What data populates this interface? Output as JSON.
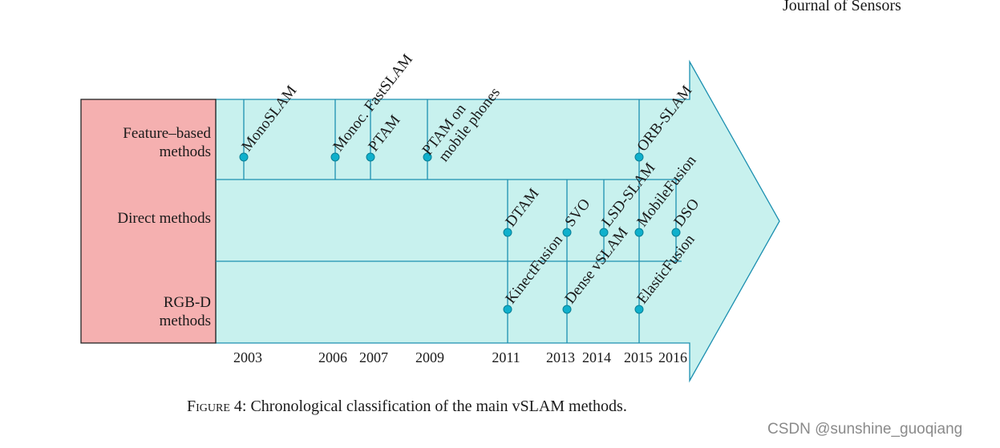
{
  "header": {
    "journal": "Journal of Sensors"
  },
  "figure": {
    "caption_prefix": "Figure 4:",
    "caption_text": " Chronological classification of the main vSLAM methods.",
    "colors": {
      "arrow_fill": "#c8f1ee",
      "arrow_stroke": "#1b8fb0",
      "category_fill": "#f5b0b0",
      "dot_fill": "#0fb0cc"
    },
    "categories": [
      {
        "lines": [
          "Feature–based",
          "methods"
        ]
      },
      {
        "lines": [
          "Direct methods"
        ]
      },
      {
        "lines": [
          "RGB-D",
          "methods"
        ]
      }
    ],
    "years": [
      "2003",
      "2006",
      "2007",
      "2009",
      "2011",
      "2013",
      "2014",
      "2015",
      "2016"
    ],
    "methods": [
      {
        "lines": [
          "MonoSLAM"
        ],
        "year": "2003",
        "category": "Feature–based methods"
      },
      {
        "lines": [
          "Monoc. FastSLAM"
        ],
        "year": "2006",
        "category": "Feature–based methods"
      },
      {
        "lines": [
          "PTAM"
        ],
        "year": "2007",
        "category": "Feature–based methods"
      },
      {
        "lines": [
          "PTAM on",
          "mobile phones"
        ],
        "year": "2009",
        "category": "Feature–based methods"
      },
      {
        "lines": [
          "ORB-SLAM"
        ],
        "year": "2015",
        "category": "Feature–based methods"
      },
      {
        "lines": [
          "DTAM"
        ],
        "year": "2011",
        "category": "Direct methods"
      },
      {
        "lines": [
          "SVO"
        ],
        "year": "2013",
        "category": "Direct methods"
      },
      {
        "lines": [
          "LSD-SLAM"
        ],
        "year": "2014",
        "category": "Direct methods"
      },
      {
        "lines": [
          "MobileFusion"
        ],
        "year": "2015",
        "category": "Direct methods"
      },
      {
        "lines": [
          "DSO"
        ],
        "year": "2016",
        "category": "Direct methods"
      },
      {
        "lines": [
          "KinectFusion"
        ],
        "year": "2011",
        "category": "RGB-D methods"
      },
      {
        "lines": [
          "Dense vSLAM"
        ],
        "year": "2013",
        "category": "RGB-D methods"
      },
      {
        "lines": [
          "ElasticFusion"
        ],
        "year": "2015",
        "category": "RGB-D methods"
      }
    ]
  },
  "watermark": "CSDN @sunshine_guoqiang"
}
